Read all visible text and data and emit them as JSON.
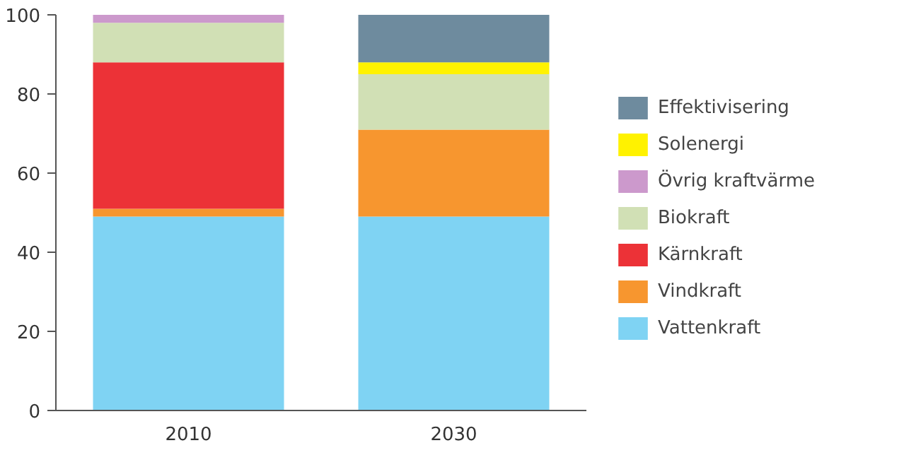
{
  "chart_data": {
    "type": "bar",
    "stacked": true,
    "categories": [
      "2010",
      "2030"
    ],
    "series": [
      {
        "name": "Vattenkraft",
        "color": "#7fd3f3",
        "values": [
          49,
          49
        ]
      },
      {
        "name": "Vindkraft",
        "color": "#f7962f",
        "values": [
          2,
          22
        ]
      },
      {
        "name": "Kärnkraft",
        "color": "#ec3237",
        "values": [
          37,
          0
        ]
      },
      {
        "name": "Biokraft",
        "color": "#d1e0b5",
        "values": [
          10,
          14
        ]
      },
      {
        "name": "Övrig kraftvärme",
        "color": "#cc99cc",
        "values": [
          2,
          0
        ]
      },
      {
        "name": "Solenergi",
        "color": "#fff200",
        "values": [
          0,
          3
        ]
      },
      {
        "name": "Effektivisering",
        "color": "#6e8b9e",
        "values": [
          0,
          12
        ]
      }
    ],
    "ylim": [
      0,
      100
    ],
    "yticks": [
      0,
      20,
      40,
      60,
      80,
      100
    ],
    "grid": false,
    "legend": "right"
  }
}
